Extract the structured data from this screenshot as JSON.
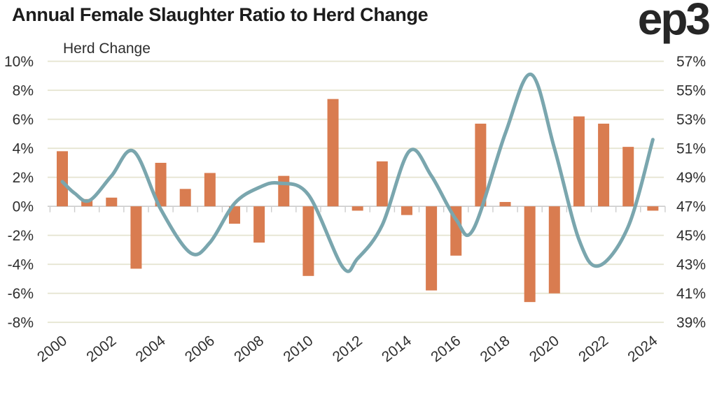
{
  "header": {
    "title": "Annual Female Slaughter Ratio to Herd Change",
    "logo": "ep3"
  },
  "colors": {
    "bar": "#d97c50",
    "line": "#7aa6ae",
    "grid": "#e6e5d2",
    "axis": "#cccccc",
    "label": "#2e2e2e",
    "title": "#1c1c1c",
    "background": "#ffffff"
  },
  "chart_data": {
    "type": "combo-bar-line",
    "title": "Annual Female Slaughter Ratio to Herd Change",
    "grid": true,
    "legend_position": "none",
    "categories": [
      2000,
      2001,
      2002,
      2003,
      2004,
      2005,
      2006,
      2007,
      2008,
      2009,
      2010,
      2011,
      2012,
      2013,
      2014,
      2015,
      2016,
      2017,
      2018,
      2019,
      2020,
      2021,
      2022,
      2023,
      2024
    ],
    "bar_series": {
      "name": "Herd Change",
      "axis": "left",
      "unit": "%",
      "values": [
        3.8,
        0.5,
        0.6,
        -4.3,
        3.0,
        1.2,
        2.3,
        -1.2,
        -2.5,
        2.1,
        -4.8,
        7.4,
        -0.3,
        3.1,
        -0.6,
        -5.8,
        -3.4,
        5.7,
        0.3,
        -6.6,
        -6.0,
        6.2,
        5.7,
        4.1,
        -0.3
      ]
    },
    "line_series": {
      "name": "Female Slaughter Ratio",
      "axis": "right",
      "unit": "%",
      "values": [
        48.7,
        47.5,
        49.1,
        50.7,
        46.8,
        44.0,
        44.5,
        47.2,
        48.3,
        48.5,
        47.8,
        43.8,
        43.4,
        45.7,
        50.7,
        49.1,
        46.1,
        45.8,
        52.0,
        56.0,
        51.0,
        44.7,
        43.0,
        45.6,
        51.6
      ],
      "smoothed_points_digitized": [
        [
          2000,
          48.7
        ],
        [
          2000.5,
          47.9
        ],
        [
          2001.1,
          47.4
        ],
        [
          2002,
          49.1
        ],
        [
          2002.9,
          50.8
        ],
        [
          2004,
          46.8
        ],
        [
          2005.2,
          43.8
        ],
        [
          2006,
          44.5
        ],
        [
          2007,
          47.2
        ],
        [
          2008,
          48.3
        ],
        [
          2008.8,
          48.6
        ],
        [
          2010,
          47.8
        ],
        [
          2011.4,
          42.8
        ],
        [
          2012,
          43.4
        ],
        [
          2013,
          45.7
        ],
        [
          2014.1,
          50.8
        ],
        [
          2015,
          49.1
        ],
        [
          2016,
          46.1
        ],
        [
          2016.7,
          45.4
        ],
        [
          2018,
          52.0
        ],
        [
          2019.05,
          56.1
        ],
        [
          2020,
          51.0
        ],
        [
          2021,
          44.7
        ],
        [
          2021.8,
          42.9
        ],
        [
          2023,
          45.6
        ],
        [
          2024,
          51.6
        ]
      ]
    },
    "left_axis": {
      "title": "Herd Change",
      "tick_labels": [
        "10%",
        "8%",
        "6%",
        "4%",
        "2%",
        "0%",
        "-2%",
        "-4%",
        "-6%",
        "-8%"
      ],
      "tick_values": [
        10,
        8,
        6,
        4,
        2,
        0,
        -2,
        -4,
        -6,
        -8
      ],
      "range": [
        -8,
        10
      ]
    },
    "right_axis": {
      "title": "",
      "tick_labels": [
        "57%",
        "55%",
        "53%",
        "51%",
        "49%",
        "47%",
        "45%",
        "43%",
        "41%",
        "39%"
      ],
      "tick_values": [
        57,
        55,
        53,
        51,
        49,
        47,
        45,
        43,
        41,
        39
      ],
      "range": [
        39,
        57
      ]
    },
    "x_axis": {
      "tick_labels": [
        "2000",
        "2002",
        "2004",
        "2006",
        "2008",
        "2010",
        "2012",
        "2014",
        "2016",
        "2018",
        "2020",
        "2022",
        "2024"
      ],
      "tick_values": [
        2000,
        2002,
        2004,
        2006,
        2008,
        2010,
        2012,
        2014,
        2016,
        2018,
        2020,
        2022,
        2024
      ]
    }
  }
}
